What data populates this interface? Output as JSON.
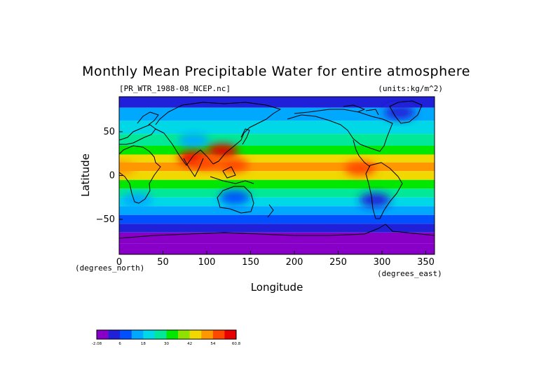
{
  "chart_data": {
    "type": "heatmap",
    "title": "Monthly Mean Precipitable Water for entire atmosphere",
    "file_label": "[PR_WTR_1988-08_NCEP.nc]",
    "units_label": "(units:kg/m^2)",
    "xlabel": "Longitude",
    "ylabel": "Latitude",
    "x_unit_label": "(degrees_east)",
    "y_unit_label": "(degrees_north)",
    "xlim": [
      0,
      360
    ],
    "ylim": [
      -90,
      90
    ],
    "x_ticks": [
      0,
      50,
      100,
      150,
      200,
      250,
      300,
      350
    ],
    "y_ticks": [
      50,
      0,
      -50
    ],
    "x_tick_labels": [
      "0",
      "50",
      "100",
      "150",
      "200",
      "250",
      "300",
      "350"
    ],
    "y_tick_labels": [
      "50",
      "0",
      "−50"
    ],
    "colorbar": {
      "tick_labels": [
        "-2.08",
        "6",
        "18",
        "30",
        "42",
        "54",
        "60.8"
      ],
      "colors": [
        "#8800c8",
        "#2020d8",
        "#0050ff",
        "#00a8ff",
        "#00d8e8",
        "#00e898",
        "#00e800",
        "#90e000",
        "#f0d800",
        "#ff9800",
        "#ff4800",
        "#e80000"
      ]
    },
    "latitude_bands": [
      {
        "lat": 85,
        "value": 6
      },
      {
        "lat": 70,
        "value": 15
      },
      {
        "lat": 55,
        "value": 22
      },
      {
        "lat": 40,
        "value": 26
      },
      {
        "lat": 28,
        "value": 33
      },
      {
        "lat": 20,
        "value": 42
      },
      {
        "lat": 10,
        "value": 46
      },
      {
        "lat": 0,
        "value": 40
      },
      {
        "lat": -10,
        "value": 33
      },
      {
        "lat": -20,
        "value": 26
      },
      {
        "lat": -30,
        "value": 20
      },
      {
        "lat": -40,
        "value": 14
      },
      {
        "lat": -50,
        "value": 11
      },
      {
        "lat": -60,
        "value": 8
      },
      {
        "lat": -70,
        "value": 3
      },
      {
        "lat": -85,
        "value": 0
      }
    ],
    "hotspots": [
      {
        "lon": 85,
        "lat": 20,
        "value": 58
      },
      {
        "lon": 118,
        "lat": 28,
        "value": 56
      },
      {
        "lon": 130,
        "lat": 12,
        "value": 55
      },
      {
        "lon": 100,
        "lat": 15,
        "value": 54
      },
      {
        "lon": 275,
        "lat": 8,
        "value": 52
      },
      {
        "lon": 0,
        "lat": 8,
        "value": 50
      }
    ],
    "dry_spots": [
      {
        "lon": 320,
        "lat": 72,
        "value": 4
      },
      {
        "lon": 132,
        "lat": -25,
        "value": 12
      },
      {
        "lon": 20,
        "lat": -28,
        "value": 14
      },
      {
        "lon": 292,
        "lat": -28,
        "value": 8
      },
      {
        "lon": 85,
        "lat": 40,
        "value": 15
      }
    ]
  }
}
